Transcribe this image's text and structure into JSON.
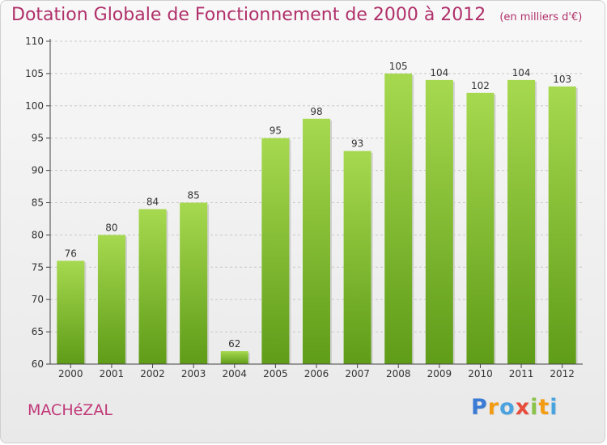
{
  "title": "Dotation Globale de Fonctionnement de 2000 à 2012",
  "subtitle": "(en milliers d'€)",
  "commune": "MACHéZAL",
  "brand": {
    "name": "Proxiti",
    "letters": [
      "P",
      "r",
      "o",
      "x",
      "i",
      "t",
      "i"
    ],
    "colors": [
      "#3a7bd5",
      "#f39c12",
      "#4aa3df",
      "#e74c3c",
      "#8bc34a",
      "#f39c12",
      "#4aa3df"
    ]
  },
  "colors": {
    "bar": "#7fbf2e",
    "bar_light": "#a6d94f",
    "bar_dark": "#5f9c18",
    "axis": "#444444",
    "grid": "#c8c8c8",
    "label": "#333333"
  },
  "chart_data": {
    "type": "bar",
    "title": "Dotation Globale de Fonctionnement de 2000 à 2012",
    "ylabel": "en milliers d'€",
    "xlabel": "",
    "categories": [
      "2000",
      "2001",
      "2002",
      "2003",
      "2004",
      "2005",
      "2006",
      "2007",
      "2008",
      "2009",
      "2010",
      "2011",
      "2012"
    ],
    "values": [
      76,
      80,
      84,
      85,
      62,
      95,
      98,
      93,
      105,
      104,
      102,
      104,
      103
    ],
    "ylim": [
      60,
      110
    ],
    "yticks": [
      60,
      65,
      70,
      75,
      80,
      85,
      90,
      95,
      100,
      105,
      110
    ],
    "grid": true
  }
}
